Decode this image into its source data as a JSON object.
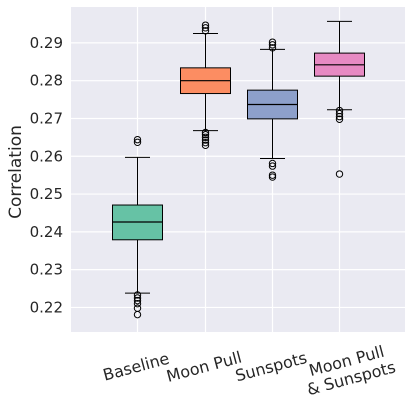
{
  "chart_data": {
    "type": "box",
    "ylabel": "Correlation",
    "ylim": [
      0.2135,
      0.2995
    ],
    "yticks": [
      0.22,
      0.23,
      0.24,
      0.25,
      0.26,
      0.27,
      0.28,
      0.29
    ],
    "ytick_labels": [
      "0.22",
      "0.23",
      "0.24",
      "0.25",
      "0.26",
      "0.27",
      "0.28",
      "0.29"
    ],
    "grid": true,
    "categories": [
      {
        "label_lines": [
          "Baseline"
        ],
        "color": "#66c2a5",
        "q1": 0.2379,
        "median": 0.2426,
        "q3": 0.2471,
        "whisker_low": 0.2238,
        "whisker_high": 0.2597,
        "outliers": [
          0.2644,
          0.2637,
          0.2233,
          0.2225,
          0.2218,
          0.221,
          0.2198,
          0.2181
        ]
      },
      {
        "label_lines": [
          "Moon Pull"
        ],
        "color": "#fc8d62",
        "q1": 0.2766,
        "median": 0.28,
        "q3": 0.2834,
        "whisker_low": 0.2668,
        "whisker_high": 0.2925,
        "outliers": [
          0.2947,
          0.294,
          0.2932,
          0.2663,
          0.2657,
          0.265,
          0.2643,
          0.2636,
          0.2629
        ]
      },
      {
        "label_lines": [
          "Sunspots"
        ],
        "color": "#8da0cb",
        "q1": 0.2699,
        "median": 0.2737,
        "q3": 0.2775,
        "whisker_low": 0.2594,
        "whisker_high": 0.2883,
        "outliers": [
          0.2902,
          0.2895,
          0.2887,
          0.2581,
          0.2574,
          0.255,
          0.2545
        ]
      },
      {
        "label_lines": [
          "Moon Pull",
          "& Sunspots"
        ],
        "color": "#e78ac3",
        "q1": 0.2812,
        "median": 0.2842,
        "q3": 0.2873,
        "whisker_low": 0.2723,
        "whisker_high": 0.2957,
        "outliers": [
          0.2721,
          0.2713,
          0.2705,
          0.2698,
          0.2553
        ]
      }
    ]
  }
}
